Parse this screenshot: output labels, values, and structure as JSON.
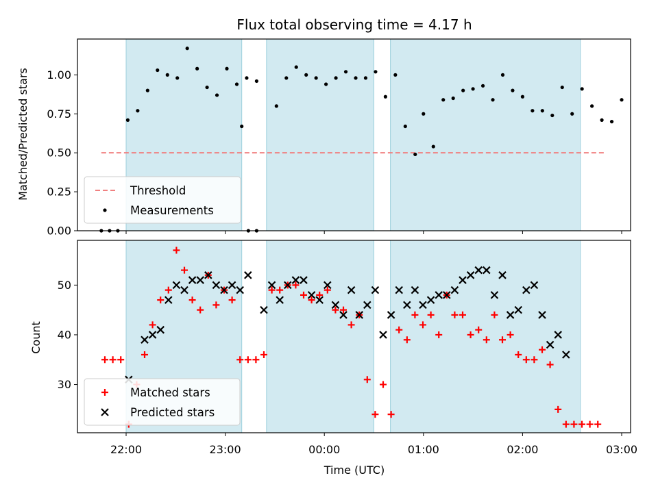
{
  "chart_data": [
    {
      "type": "scatter",
      "title": "Flux total observing time = 4.17 h",
      "xlabel": "",
      "ylabel": "Matched/Predicted stars",
      "ylim": [
        0,
        1.23
      ],
      "yticks": [
        "0.00",
        "0.25",
        "0.50",
        "0.75",
        "1.00"
      ],
      "ytick_values": [
        0,
        0.25,
        0.5,
        0.75,
        1.0
      ],
      "legend_position": "lower-left",
      "threshold": {
        "name": "Threshold",
        "value": 0.5,
        "x_start": "21:45",
        "x_end": "02:50",
        "color": "#f08080"
      },
      "series": [
        {
          "name": "Measurements",
          "color": "#000000",
          "marker": "dot",
          "points": [
            [
              "21:45",
              0.0
            ],
            [
              "21:50",
              0.0
            ],
            [
              "21:55",
              0.0
            ],
            [
              "22:01",
              0.71
            ],
            [
              "22:07",
              0.77
            ],
            [
              "22:13",
              0.9
            ],
            [
              "22:19",
              1.03
            ],
            [
              "22:25",
              1.0
            ],
            [
              "22:31",
              0.98
            ],
            [
              "22:37",
              1.17
            ],
            [
              "22:43",
              1.04
            ],
            [
              "22:49",
              0.92
            ],
            [
              "22:55",
              0.87
            ],
            [
              "23:01",
              1.04
            ],
            [
              "23:07",
              0.94
            ],
            [
              "23:13",
              0.98
            ],
            [
              "23:19",
              0.96
            ],
            [
              "23:10",
              0.67
            ],
            [
              "23:14",
              0.0
            ],
            [
              "23:19",
              0.0
            ],
            [
              "23:31",
              0.8
            ],
            [
              "23:37",
              0.98
            ],
            [
              "23:43",
              1.05
            ],
            [
              "23:49",
              1.0
            ],
            [
              "23:55",
              0.98
            ],
            [
              "00:01",
              0.94
            ],
            [
              "00:07",
              0.98
            ],
            [
              "00:13",
              1.02
            ],
            [
              "00:19",
              0.98
            ],
            [
              "00:25",
              0.98
            ],
            [
              "00:31",
              1.02
            ],
            [
              "00:37",
              0.86
            ],
            [
              "00:43",
              1.0
            ],
            [
              "00:49",
              0.67
            ],
            [
              "00:55",
              0.49
            ],
            [
              "01:00",
              0.75
            ],
            [
              "01:06",
              0.54
            ],
            [
              "01:12",
              0.84
            ],
            [
              "01:18",
              0.85
            ],
            [
              "01:24",
              0.9
            ],
            [
              "01:30",
              0.91
            ],
            [
              "01:36",
              0.93
            ],
            [
              "01:42",
              0.84
            ],
            [
              "01:48",
              1.0
            ],
            [
              "01:54",
              0.9
            ],
            [
              "02:00",
              0.86
            ],
            [
              "02:06",
              0.77
            ],
            [
              "02:12",
              0.77
            ],
            [
              "02:18",
              0.74
            ],
            [
              "02:24",
              0.92
            ],
            [
              "02:30",
              0.75
            ],
            [
              "02:36",
              0.91
            ],
            [
              "02:42",
              0.8
            ],
            [
              "02:48",
              0.71
            ],
            [
              "02:54",
              0.7
            ],
            [
              "03:00",
              0.84
            ]
          ]
        }
      ]
    },
    {
      "type": "scatter",
      "title": "",
      "xlabel": "Time (UTC)",
      "ylabel": "Count",
      "ylim": [
        20.3,
        59
      ],
      "yticks": [
        "30",
        "40",
        "50"
      ],
      "ytick_values": [
        30,
        40,
        50
      ],
      "xticks": [
        "22:00",
        "23:00",
        "00:00",
        "01:00",
        "02:00",
        "03:00"
      ],
      "legend_position": "lower-left",
      "series": [
        {
          "name": "Matched stars",
          "color": "#ff0000",
          "marker": "plus",
          "points": [
            [
              0,
              35
            ],
            [
              1,
              35
            ],
            [
              2,
              35
            ],
            [
              3,
              22
            ],
            [
              4,
              30
            ],
            [
              5,
              36
            ],
            [
              6,
              42
            ],
            [
              7,
              47
            ],
            [
              8,
              49
            ],
            [
              9,
              57
            ],
            [
              10,
              53
            ],
            [
              11,
              47
            ],
            [
              12,
              45
            ],
            [
              13,
              52
            ],
            [
              14,
              46
            ],
            [
              15,
              49
            ],
            [
              16,
              47
            ],
            [
              17,
              35
            ],
            [
              18,
              35
            ],
            [
              19,
              35
            ],
            [
              20,
              36
            ],
            [
              21,
              49
            ],
            [
              22,
              49
            ],
            [
              23,
              50
            ],
            [
              24,
              50
            ],
            [
              25,
              48
            ],
            [
              26,
              47
            ],
            [
              27,
              48
            ],
            [
              28,
              49
            ],
            [
              29,
              45
            ],
            [
              30,
              45
            ],
            [
              31,
              42
            ],
            [
              32,
              44
            ],
            [
              33,
              31
            ],
            [
              34,
              24
            ],
            [
              35,
              30
            ],
            [
              36,
              24
            ],
            [
              37,
              41
            ],
            [
              38,
              39
            ],
            [
              39,
              44
            ],
            [
              40,
              42
            ],
            [
              41,
              44
            ],
            [
              42,
              40
            ],
            [
              43,
              48
            ],
            [
              44,
              44
            ],
            [
              45,
              44
            ],
            [
              46,
              40
            ],
            [
              47,
              41
            ],
            [
              48,
              39
            ],
            [
              49,
              44
            ],
            [
              50,
              39
            ],
            [
              51,
              40
            ],
            [
              52,
              36
            ],
            [
              53,
              35
            ],
            [
              54,
              35
            ],
            [
              55,
              37
            ],
            [
              56,
              34
            ],
            [
              57,
              25
            ],
            [
              58,
              22
            ],
            [
              59,
              22
            ],
            [
              60,
              22
            ],
            [
              61,
              22
            ],
            [
              62,
              22
            ]
          ]
        },
        {
          "name": "Predicted stars",
          "color": "#000000",
          "marker": "x",
          "points": [
            [
              3,
              31
            ],
            [
              5,
              39
            ],
            [
              6,
              40
            ],
            [
              7,
              41
            ],
            [
              8,
              47
            ],
            [
              9,
              50
            ],
            [
              10,
              49
            ],
            [
              11,
              51
            ],
            [
              12,
              51
            ],
            [
              13,
              52
            ],
            [
              14,
              50
            ],
            [
              15,
              49
            ],
            [
              16,
              50
            ],
            [
              17,
              49
            ],
            [
              18,
              52
            ],
            [
              20,
              45
            ],
            [
              21,
              50
            ],
            [
              22,
              47
            ],
            [
              23,
              50
            ],
            [
              24,
              51
            ],
            [
              25,
              51
            ],
            [
              26,
              48
            ],
            [
              27,
              47
            ],
            [
              28,
              50
            ],
            [
              29,
              46
            ],
            [
              30,
              44
            ],
            [
              31,
              49
            ],
            [
              32,
              44
            ],
            [
              33,
              46
            ],
            [
              34,
              49
            ],
            [
              35,
              40
            ],
            [
              36,
              44
            ],
            [
              37,
              49
            ],
            [
              38,
              46
            ],
            [
              39,
              49
            ],
            [
              40,
              46
            ],
            [
              41,
              47
            ],
            [
              42,
              48
            ],
            [
              43,
              48
            ],
            [
              44,
              49
            ],
            [
              45,
              51
            ],
            [
              46,
              52
            ],
            [
              47,
              53
            ],
            [
              48,
              53
            ],
            [
              49,
              48
            ],
            [
              50,
              52
            ],
            [
              51,
              44
            ],
            [
              52,
              45
            ],
            [
              53,
              49
            ],
            [
              54,
              50
            ],
            [
              55,
              44
            ],
            [
              56,
              38
            ],
            [
              57,
              40
            ],
            [
              58,
              36
            ]
          ]
        }
      ]
    }
  ],
  "observing_windows": [
    [
      "21:60",
      "23:10"
    ],
    [
      "23:25",
      "00:30"
    ],
    [
      "00:40",
      "02:35"
    ]
  ]
}
